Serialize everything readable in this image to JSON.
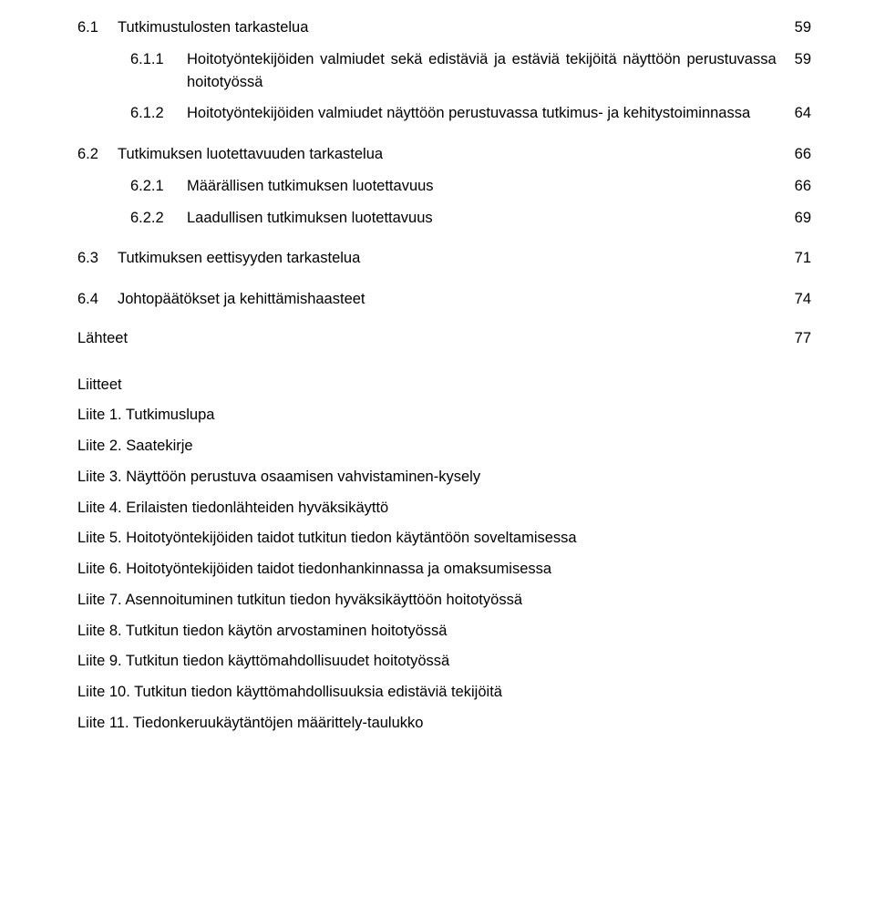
{
  "font_family": "Verdana",
  "text_color": "#000000",
  "background_color": "#ffffff",
  "base_font_size_pt": 12,
  "toc": {
    "rows": [
      {
        "level": 0,
        "num": "6.1",
        "text": "Tutkimustulosten tarkastelua",
        "page": "59"
      },
      {
        "level": 1,
        "num": "6.1.1",
        "text": "Hoitotyöntekijöiden valmiudet sekä edistäviä ja estäviä tekijöitä näyttöön perustuvassa hoitotyössä",
        "page": "59",
        "justify": true
      },
      {
        "level": 1,
        "num": "6.1.2",
        "text": "Hoitotyöntekijöiden valmiudet näyttöön perustuvassa tutkimus- ja kehitystoiminnassa",
        "page": "64",
        "justify": true
      },
      {
        "level": 0,
        "num": "6.2",
        "text": "Tutkimuksen luotettavuuden tarkastelua",
        "page": "66",
        "space_before": true
      },
      {
        "level": 1,
        "num": "6.2.1",
        "text": "Määrällisen tutkimuksen luotettavuus",
        "page": "66"
      },
      {
        "level": 1,
        "num": "6.2.2",
        "text": "Laadullisen tutkimuksen luotettavuus",
        "page": "69"
      },
      {
        "level": 0,
        "num": "6.3",
        "text": "Tutkimuksen eettisyyden tarkastelua",
        "page": "71",
        "space_before": true
      },
      {
        "level": 0,
        "num": "6.4",
        "text": "Johtopäätökset ja kehittämishaasteet",
        "page": "74",
        "space_before": true
      }
    ]
  },
  "lahteet": {
    "label": "Lähteet",
    "page": "77"
  },
  "liitteet": {
    "heading": "Liitteet",
    "items": [
      {
        "num": "Liite 1.",
        "text": "Tutkimuslupa"
      },
      {
        "num": "Liite 2.",
        "text": "Saatekirje"
      },
      {
        "num": "Liite 3.",
        "text": "Näyttöön perustuva osaamisen vahvistaminen-kysely"
      },
      {
        "num": "Liite 4.",
        "text": "Erilaisten tiedonlähteiden hyväksikäyttö"
      },
      {
        "num": "Liite 5.",
        "text": "Hoitotyöntekijöiden taidot tutkitun tiedon käytäntöön soveltamisessa"
      },
      {
        "num": "Liite 6.",
        "text": "Hoitotyöntekijöiden taidot tiedonhankinnassa ja omaksumisessa"
      },
      {
        "num": "Liite 7.",
        "text": "Asennoituminen tutkitun tiedon hyväksikäyttöön hoitotyössä"
      },
      {
        "num": "Liite 8.",
        "text": "Tutkitun tiedon käytön arvostaminen hoitotyössä"
      },
      {
        "num": "Liite 9.",
        "text": "Tutkitun tiedon käyttömahdollisuudet hoitotyössä"
      },
      {
        "num": "Liite 10.",
        "text": "Tutkitun tiedon käyttömahdollisuuksia edistäviä tekijöitä"
      },
      {
        "num": "Liite 11.",
        "text": "Tiedonkeruukäytäntöjen määrittely-taulukko"
      }
    ]
  }
}
